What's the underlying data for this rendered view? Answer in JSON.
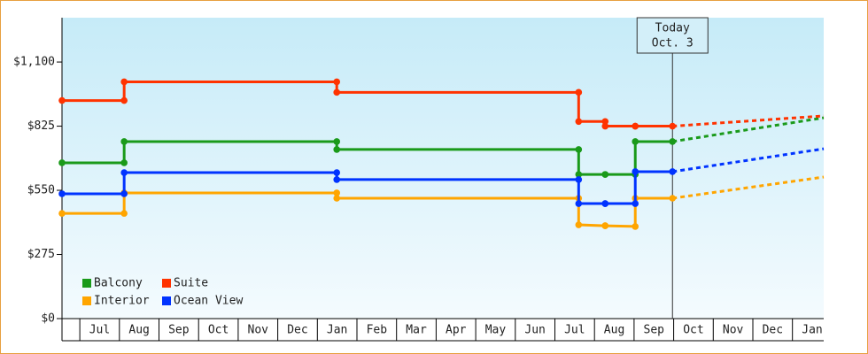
{
  "chart_data": {
    "type": "line",
    "xlim": [
      -0.45,
      18.79
    ],
    "ylim": [
      0,
      1290
    ],
    "yticks": [
      {
        "value": 0,
        "label": "$0"
      },
      {
        "value": 275,
        "label": "$275"
      },
      {
        "value": 550,
        "label": "$550"
      },
      {
        "value": 825,
        "label": "$825"
      },
      {
        "value": 1100,
        "label": "$1,100"
      }
    ],
    "xticks": [
      {
        "value": 0.5,
        "label": "Jul"
      },
      {
        "value": 1.5,
        "label": "Aug"
      },
      {
        "value": 2.5,
        "label": "Sep"
      },
      {
        "value": 3.5,
        "label": "Oct"
      },
      {
        "value": 4.5,
        "label": "Nov"
      },
      {
        "value": 5.5,
        "label": "Dec"
      },
      {
        "value": 6.5,
        "label": "Jan"
      },
      {
        "value": 7.5,
        "label": "Feb"
      },
      {
        "value": 8.5,
        "label": "Mar"
      },
      {
        "value": 9.5,
        "label": "Apr"
      },
      {
        "value": 10.5,
        "label": "May"
      },
      {
        "value": 11.5,
        "label": "Jun"
      },
      {
        "value": 12.5,
        "label": "Jul"
      },
      {
        "value": 13.5,
        "label": "Aug"
      },
      {
        "value": 14.5,
        "label": "Sep"
      },
      {
        "value": 15.5,
        "label": "Oct"
      },
      {
        "value": 16.5,
        "label": "Nov"
      },
      {
        "value": 17.5,
        "label": "Dec"
      },
      {
        "value": 18.5,
        "label": "Jan"
      }
    ],
    "series": [
      {
        "name": "Balcony",
        "color": "#1a9a1a",
        "x": [
          -0.45,
          1.12,
          1.12,
          6.49,
          6.49,
          12.6,
          12.6,
          13.27,
          13.27,
          14.03,
          14.03,
          14.97,
          18.79
        ],
        "values": [
          668,
          668,
          759,
          759,
          725,
          725,
          618,
          618,
          618,
          618,
          759,
          759,
          861
        ]
      },
      {
        "name": "Suite",
        "color": "#ff3300",
        "x": [
          -0.45,
          1.12,
          1.12,
          6.49,
          6.49,
          12.6,
          12.6,
          13.27,
          13.27,
          14.03,
          14.03,
          14.97,
          18.79
        ],
        "values": [
          935,
          935,
          1015,
          1015,
          970,
          970,
          845,
          845,
          825,
          825,
          825,
          825,
          869
        ]
      },
      {
        "name": "Interior",
        "color": "#ffa500",
        "x": [
          -0.45,
          1.12,
          1.12,
          6.49,
          6.49,
          12.6,
          12.6,
          13.27,
          13.27,
          14.03,
          14.03,
          14.97,
          18.79
        ],
        "values": [
          451,
          451,
          539,
          539,
          516,
          516,
          402,
          398,
          398,
          395,
          516,
          516,
          607
        ]
      },
      {
        "name": "Ocean View",
        "color": "#0033ff",
        "x": [
          -0.45,
          1.12,
          1.12,
          6.49,
          6.49,
          12.6,
          12.6,
          13.27,
          13.27,
          14.03,
          14.03,
          14.97,
          18.79
        ],
        "values": [
          535,
          535,
          626,
          626,
          596,
          596,
          493,
          493,
          493,
          493,
          630,
          630,
          728
        ]
      }
    ],
    "annotation": {
      "lines": [
        "Today",
        "Oct. 3"
      ],
      "x": 14.97
    },
    "legend": "lower left"
  }
}
